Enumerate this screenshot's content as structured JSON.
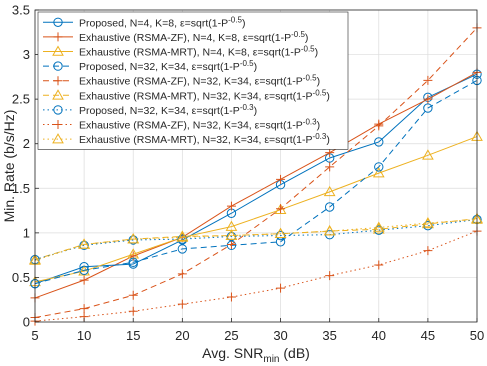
{
  "chart_data": {
    "type": "line",
    "xlabel": "Avg. SNR",
    "xlabel_sub": "min",
    "xlabel_unit": " (dB)",
    "ylabel": "Min. Rate (b/s/Hz)",
    "x": [
      5,
      10,
      15,
      20,
      25,
      30,
      35,
      40,
      45,
      50
    ],
    "xlim": [
      5,
      50
    ],
    "ylim": [
      0,
      3.5
    ],
    "xticks": [
      5,
      10,
      15,
      20,
      25,
      30,
      35,
      40,
      45,
      50
    ],
    "yticks": [
      0,
      0.5,
      1,
      1.5,
      2,
      2.5,
      3,
      3.5
    ],
    "ytick_labels": [
      "0",
      "0.5",
      "1",
      "1.5",
      "2",
      "2.5",
      "3",
      "3.5"
    ],
    "grid": true,
    "legend_position": "top-left",
    "series": [
      {
        "name": "Proposed, N=4, K=8,  ε=sqrt(1-P",
        "sup": "-0.5",
        "tail": ")",
        "color": "#0072BD",
        "dash": "solid",
        "marker": "circle",
        "values": [
          0.43,
          0.62,
          0.65,
          0.92,
          1.22,
          1.54,
          1.84,
          2.02,
          2.52,
          2.78
        ]
      },
      {
        "name": "Exhaustive (RSMA-ZF), N=4, K=8,  ε=sqrt(1-P",
        "sup": "-0.5",
        "tail": ")",
        "color": "#D95319",
        "dash": "solid",
        "marker": "plus",
        "values": [
          0.27,
          0.47,
          0.74,
          0.95,
          1.3,
          1.6,
          1.9,
          2.22,
          2.5,
          2.8
        ]
      },
      {
        "name": "Exhaustive (RSMA-MRT), N=4, K=8,  ε=sqrt(1-P",
        "sup": "-0.5",
        "tail": ")",
        "color": "#EDB120",
        "dash": "solid",
        "marker": "triangle",
        "values": [
          0.45,
          0.57,
          0.76,
          0.95,
          1.07,
          1.26,
          1.46,
          1.67,
          1.87,
          2.08
        ]
      },
      {
        "name": "Proposed, N=32, K=34,  ε=sqrt(1-P",
        "sup": "-0.5",
        "tail": ")",
        "color": "#0072BD",
        "dash": "dash",
        "marker": "circle",
        "values": [
          0.43,
          0.58,
          0.67,
          0.82,
          0.86,
          0.9,
          1.29,
          1.74,
          2.4,
          2.71
        ]
      },
      {
        "name": "Exhaustive (RSMA-ZF), N=32, K=34,  ε=sqrt(1-P",
        "sup": "-0.5",
        "tail": ")",
        "color": "#D95319",
        "dash": "dash",
        "marker": "plus",
        "values": [
          0.05,
          0.15,
          0.3,
          0.54,
          0.87,
          1.27,
          1.74,
          2.2,
          2.71,
          3.3
        ]
      },
      {
        "name": "Exhaustive (RSMA-MRT), N=32, K=34,  ε=sqrt(1-P",
        "sup": "-0.5",
        "tail": ")",
        "color": "#EDB120",
        "dash": "dash",
        "marker": "triangle",
        "values": [
          0.7,
          0.87,
          0.93,
          0.96,
          0.97,
          0.99,
          1.02,
          1.04,
          1.1,
          1.16
        ]
      },
      {
        "name": "Proposed, N=32, K=34,  ε=sqrt(1-P",
        "sup": "-0.3",
        "tail": ")",
        "color": "#0072BD",
        "dash": "dot",
        "marker": "circle",
        "values": [
          0.7,
          0.86,
          0.92,
          0.93,
          0.96,
          0.97,
          0.98,
          1.03,
          1.08,
          1.15
        ]
      },
      {
        "name": "Exhaustive (RSMA-ZF), N=32, K=34,  ε=sqrt(1-P",
        "sup": "-0.3",
        "tail": ")",
        "color": "#D95319",
        "dash": "dot",
        "marker": "plus",
        "values": [
          0.01,
          0.06,
          0.12,
          0.2,
          0.28,
          0.38,
          0.52,
          0.64,
          0.8,
          1.02
        ]
      },
      {
        "name": "Exhaustive (RSMA-MRT), N=32, K=34,  ε=sqrt(1-P",
        "sup": "-0.3",
        "tail": ")",
        "color": "#EDB120",
        "dash": "dot",
        "marker": "triangle",
        "values": [
          0.69,
          0.87,
          0.93,
          0.95,
          0.97,
          0.99,
          1.02,
          1.06,
          1.11,
          1.15
        ]
      }
    ]
  }
}
